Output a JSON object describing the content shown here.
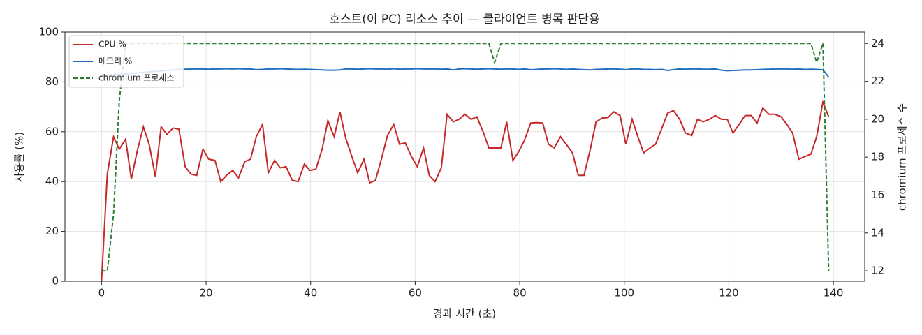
{
  "chart_data": {
    "type": "line",
    "title": "호스트(이 PC) 리소스 추이 — 클라이언트 병목 판단용",
    "xlabel": "경과 시간 (초)",
    "ylabel": "사용률 (%)",
    "y2label": "chromium 프로세스 수",
    "xlim": [
      -7,
      146
    ],
    "ylim": [
      0,
      100
    ],
    "y2lim": [
      11.45,
      24.6
    ],
    "xticks": [
      0,
      20,
      40,
      60,
      80,
      100,
      120,
      140
    ],
    "yticks": [
      0,
      20,
      40,
      60,
      80,
      100
    ],
    "y2ticks": [
      12,
      14,
      16,
      18,
      20,
      22,
      24
    ],
    "grid": true,
    "legend": "upper-left",
    "x": [
      0,
      1.1,
      2.3,
      3.4,
      4.6,
      5.7,
      6.8,
      8.0,
      9.1,
      10.3,
      11.4,
      12.5,
      13.7,
      14.8,
      16.0,
      17.1,
      18.2,
      19.4,
      20.5,
      21.7,
      22.8,
      23.9,
      25.1,
      26.2,
      27.4,
      28.5,
      29.6,
      30.8,
      31.9,
      33.1,
      34.2,
      35.3,
      36.5,
      37.6,
      38.8,
      39.9,
      41.0,
      42.2,
      43.3,
      44.5,
      45.6,
      46.7,
      47.9,
      49.0,
      50.2,
      51.3,
      52.4,
      53.6,
      54.7,
      55.9,
      57.0,
      58.1,
      59.3,
      60.4,
      61.6,
      62.7,
      63.8,
      65.0,
      66.1,
      67.3,
      68.4,
      69.5,
      70.7,
      71.8,
      73.0,
      74.1,
      75.2,
      76.4,
      77.5,
      78.7,
      79.8,
      80.9,
      82.1,
      83.2,
      84.4,
      85.5,
      86.6,
      87.8,
      88.9,
      90.1,
      91.2,
      92.3,
      93.5,
      94.6,
      95.8,
      96.9,
      98.0,
      99.2,
      100.3,
      101.5,
      102.6,
      103.7,
      104.9,
      106.0,
      107.2,
      108.3,
      109.4,
      110.6,
      111.7,
      112.9,
      114.0,
      115.1,
      116.3,
      117.4,
      118.6,
      119.7,
      120.8,
      122.0,
      123.1,
      124.3,
      125.4,
      126.5,
      127.7,
      128.8,
      130.0,
      131.1,
      132.2,
      133.4,
      134.5,
      135.7,
      136.8,
      138.0,
      139.1
    ],
    "series": [
      {
        "name": "CPU %",
        "color": "#c62828",
        "style": "solid",
        "axis": "y",
        "values": [
          0,
          43,
          58,
          53,
          57,
          41,
          52,
          62,
          55,
          42,
          62,
          59,
          61.5,
          61,
          46,
          43,
          42.5,
          53,
          49,
          48.5,
          40,
          42.5,
          44.5,
          41.5,
          48,
          49,
          58,
          63,
          43.5,
          48.5,
          45.5,
          46,
          40.5,
          40,
          47,
          44.5,
          45,
          53,
          64.5,
          58,
          68,
          57.5,
          50,
          43.5,
          49,
          39.5,
          40.5,
          49.5,
          58.5,
          63,
          55,
          55.5,
          50,
          46,
          53.5,
          42.5,
          40,
          45.5,
          67,
          64,
          65,
          67,
          65,
          66,
          60,
          53.5,
          53.5,
          53.5,
          64,
          48.5,
          52,
          56.5,
          63.5,
          63.7,
          63.5,
          55,
          53.5,
          58,
          55,
          51.5,
          42.5,
          42.5,
          53,
          64,
          65.5,
          65.7,
          68,
          66.5,
          55,
          65,
          58,
          51.5,
          53.5,
          55,
          61.5,
          67.5,
          68.5,
          65,
          59.5,
          58.5,
          65,
          64,
          65,
          66.5,
          65,
          65,
          59.5,
          63,
          66.5,
          66.5,
          63.5,
          69.5,
          67,
          67,
          66,
          63,
          59.5,
          49,
          50,
          51,
          58,
          72,
          66
        ]
      },
      {
        "name": "메모리 %",
        "color": "#1f6ebf",
        "style": "solid",
        "axis": "y",
        "values": [
          82.5,
          82.7,
          82.9,
          83,
          83.2,
          83.4,
          83.6,
          83.8,
          84,
          84.2,
          84.4,
          84.6,
          84.8,
          85,
          85.1,
          85.2,
          85.2,
          85.2,
          85.1,
          85.2,
          85.2,
          85.3,
          85.2,
          85.3,
          85.2,
          85.2,
          84.9,
          85,
          85.2,
          85.2,
          85.3,
          85.2,
          85.1,
          85,
          85.1,
          85,
          84.9,
          84.8,
          84.7,
          84.7,
          84.8,
          85.2,
          85.2,
          85.1,
          85.2,
          85.3,
          85.2,
          85.2,
          85.1,
          85.3,
          85.1,
          85.2,
          85.2,
          85.3,
          85.2,
          85.2,
          85.2,
          85.1,
          85.2,
          84.8,
          85.2,
          85.3,
          85.2,
          85.1,
          85.2,
          85.3,
          85.2,
          85.1,
          85.2,
          85.2,
          85,
          85.2,
          84.9,
          85,
          85.2,
          85.2,
          85.3,
          85.2,
          85,
          85.2,
          85,
          84.9,
          84.8,
          85,
          85.1,
          85.2,
          85.2,
          85.1,
          84.9,
          85.2,
          85.2,
          85,
          85,
          84.9,
          85,
          84.6,
          84.9,
          85.2,
          85.1,
          85.2,
          85.2,
          85.1,
          85.1,
          85.2,
          84.7,
          84.5,
          84.6,
          84.7,
          84.8,
          84.8,
          84.9,
          85,
          85.1,
          85.2,
          85.2,
          85.2,
          85.1,
          85.2,
          85,
          85.1,
          85,
          84.8,
          82
        ]
      },
      {
        "name": "chromium 프로세스",
        "color": "#2e7d32",
        "style": "dashed",
        "axis": "y2",
        "values": [
          12,
          12,
          15,
          21,
          24,
          24,
          24,
          24,
          24,
          24,
          24,
          24,
          24,
          24,
          24,
          24,
          24,
          24,
          24,
          24,
          24,
          24,
          24,
          24,
          24,
          24,
          24,
          24,
          24,
          24,
          24,
          24,
          24,
          24,
          24,
          24,
          24,
          24,
          24,
          24,
          24,
          24,
          24,
          24,
          24,
          24,
          24,
          24,
          24,
          24,
          24,
          24,
          24,
          24,
          24,
          24,
          24,
          24,
          24,
          24,
          24,
          24,
          24,
          24,
          24,
          24,
          23,
          24,
          24,
          24,
          24,
          24,
          24,
          24,
          24,
          24,
          24,
          24,
          24,
          24,
          24,
          24,
          24,
          24,
          24,
          24,
          24,
          24,
          24,
          24,
          24,
          24,
          24,
          24,
          24,
          24,
          24,
          24,
          24,
          24,
          24,
          24,
          24,
          24,
          24,
          24,
          24,
          24,
          24,
          24,
          24,
          24,
          24,
          24,
          24,
          24,
          24,
          24,
          24,
          24,
          23,
          24,
          12
        ]
      }
    ]
  }
}
